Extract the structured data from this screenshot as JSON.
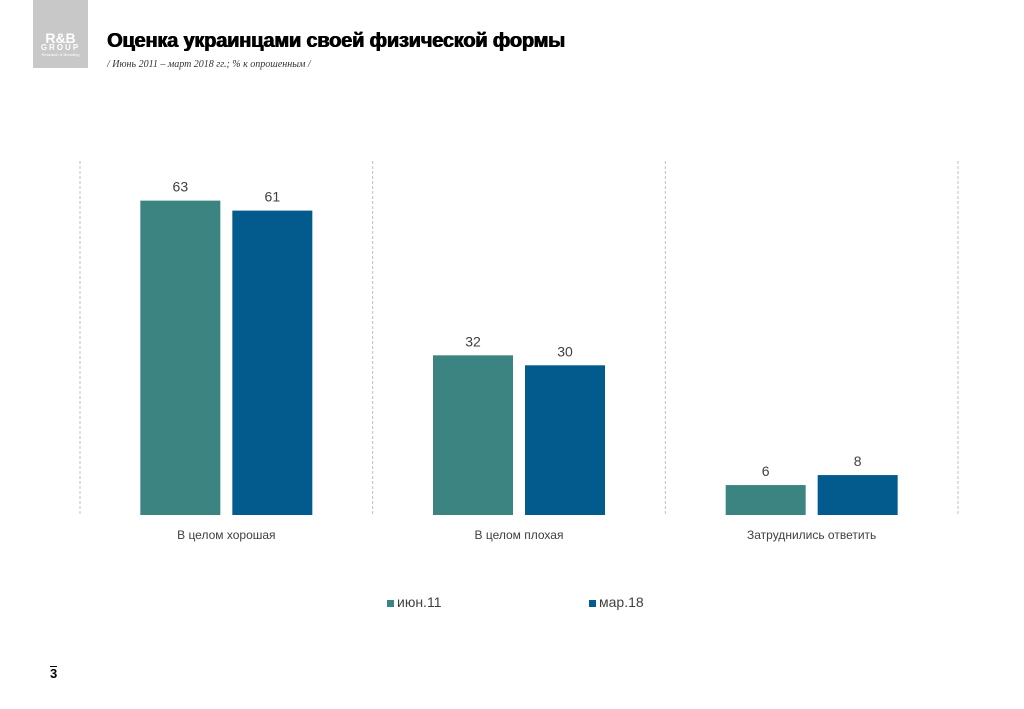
{
  "header": {
    "logo_main": "R&B",
    "logo_sub": "GROUP",
    "logo_tagline": "Research & Branding",
    "title": "Оценка украинцами своей физической формы",
    "subtitle": "/ Июнь 2011 – март  2018 гг.; % к опрошенным  /"
  },
  "colors": {
    "series_1": "#3c8481",
    "series_2": "#025a8d",
    "grid": "#bfbfbf",
    "text": "#404040"
  },
  "chart_data": {
    "type": "bar",
    "title": "",
    "xlabel": "",
    "ylabel": "",
    "ylim": [
      0,
      63
    ],
    "grid": "vertical dashed separators between categories",
    "legend_position": "bottom",
    "categories": [
      "В целом хорошая",
      "В целом плохая",
      "Затруднились ответить"
    ],
    "series": [
      {
        "name": "июн.11",
        "values": [
          63,
          32,
          6
        ]
      },
      {
        "name": "мар.18",
        "values": [
          61,
          30,
          8
        ]
      }
    ]
  },
  "footer": {
    "page_number": "3"
  }
}
